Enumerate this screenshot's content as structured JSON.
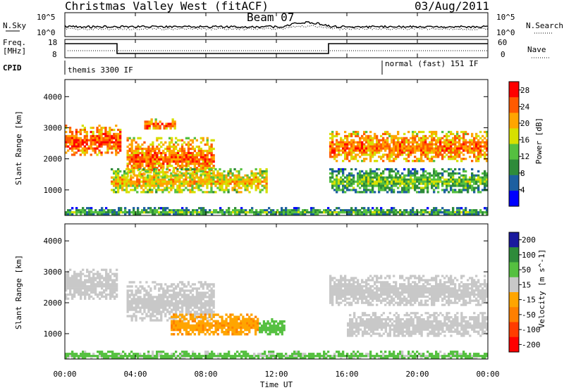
{
  "header": {
    "station": "Christmas Valley West (fitACF)",
    "beam": "Beam 07",
    "date": "03/Aug/2011"
  },
  "top_panels": {
    "nsky_label": "N.Sky",
    "nsky_ticks": [
      "10^5",
      "10^0"
    ],
    "nsearch_label": "N.Search",
    "nsearch_ticks": [
      "10^5",
      "10^0"
    ],
    "freq_label_1": "Freq.",
    "freq_label_2": "[MHz]",
    "freq_ticks": [
      "18",
      "8"
    ],
    "nave_label": "Nave",
    "nave_ticks": [
      "60",
      "0"
    ],
    "cpid_label": "CPID",
    "cpid_segments": [
      {
        "label": "themis 3300 IF",
        "start": "00:00",
        "end": "18:00"
      },
      {
        "label": "normal (fast) 151 IF",
        "start": "18:00",
        "end": "24:00"
      }
    ]
  },
  "chart_data": [
    {
      "type": "heatmap",
      "title": "",
      "ylabel": "Slant Range [km]",
      "xlabel": "",
      "x_ticks": [
        "00:00",
        "04:00",
        "08:00",
        "12:00",
        "16:00",
        "20:00",
        "00:00"
      ],
      "y_ticks": [
        1000,
        2000,
        3000,
        4000
      ],
      "ylim": [
        180,
        4550
      ],
      "xlim_hours": [
        0,
        24
      ],
      "colorbar": {
        "label": "Power [dB]",
        "ticks": [
          4,
          8,
          12,
          16,
          20,
          24,
          28
        ],
        "range": [
          0,
          30
        ],
        "colors": [
          "#0000ff",
          "#1c5fa0",
          "#2e8b3a",
          "#55c040",
          "#d6e000",
          "#ffa500",
          "#ff5a00",
          "#ff0000"
        ]
      },
      "regions": [
        {
          "name": "early high band",
          "t": [
            0.0,
            3.2
          ],
          "r": [
            2100,
            3100
          ],
          "value": 26
        },
        {
          "name": "04-06 blob",
          "t": [
            4.5,
            6.3
          ],
          "r": [
            2950,
            3300
          ],
          "value": 25
        },
        {
          "name": "04-09 rising streak",
          "t": [
            3.5,
            8.5
          ],
          "r": [
            1400,
            2700
          ],
          "value": 24
        },
        {
          "name": "lower band",
          "t": [
            2.6,
            11.5
          ],
          "r": [
            900,
            1700
          ],
          "value": 20
        },
        {
          "name": "late high band",
          "t": [
            15.0,
            24.0
          ],
          "r": [
            1900,
            2900
          ],
          "value": 24
        },
        {
          "name": "late lower band",
          "t": [
            15.0,
            24.0
          ],
          "r": [
            900,
            1700
          ],
          "value": 14
        },
        {
          "name": "near-range echoes",
          "t": [
            0.0,
            24.0
          ],
          "r": [
            180,
            450
          ],
          "value": 12
        }
      ]
    },
    {
      "type": "heatmap",
      "title": "",
      "ylabel": "Slant Range [km]",
      "xlabel": "Time UT",
      "x_ticks": [
        "00:00",
        "04:00",
        "08:00",
        "12:00",
        "16:00",
        "20:00",
        "00:00"
      ],
      "y_ticks": [
        1000,
        2000,
        3000,
        4000
      ],
      "ylim": [
        180,
        4550
      ],
      "xlim_hours": [
        0,
        24
      ],
      "colorbar": {
        "label": "Velocity [m s^-1]",
        "ticks": [
          200,
          100,
          50,
          15,
          -15,
          -50,
          -100,
          -200
        ],
        "colors": [
          "#1a1a9e",
          "#2e8b3a",
          "#55c040",
          "#c8c8c8",
          "#ffa500",
          "#ff7f00",
          "#ff3c00",
          "#ff0000"
        ]
      },
      "regions": [
        {
          "name": "early high band",
          "t": [
            0.0,
            3.0
          ],
          "r": [
            2100,
            3100
          ],
          "value": 0
        },
        {
          "name": "streak",
          "t": [
            3.5,
            8.5
          ],
          "r": [
            1400,
            2700
          ],
          "value": 0
        },
        {
          "name": "orange lower band",
          "t": [
            6.0,
            11.0
          ],
          "r": [
            950,
            1650
          ],
          "value": -40
        },
        {
          "name": "green lower band",
          "t": [
            11.0,
            12.5
          ],
          "r": [
            950,
            1500
          ],
          "value": 60
        },
        {
          "name": "late high band",
          "t": [
            15.0,
            24.0
          ],
          "r": [
            1900,
            2900
          ],
          "value": 0
        },
        {
          "name": "late lower band",
          "t": [
            16.0,
            24.0
          ],
          "r": [
            900,
            1700
          ],
          "value": 0
        },
        {
          "name": "near-range",
          "t": [
            0.0,
            24.0
          ],
          "r": [
            180,
            450
          ],
          "value": 40
        }
      ]
    }
  ]
}
